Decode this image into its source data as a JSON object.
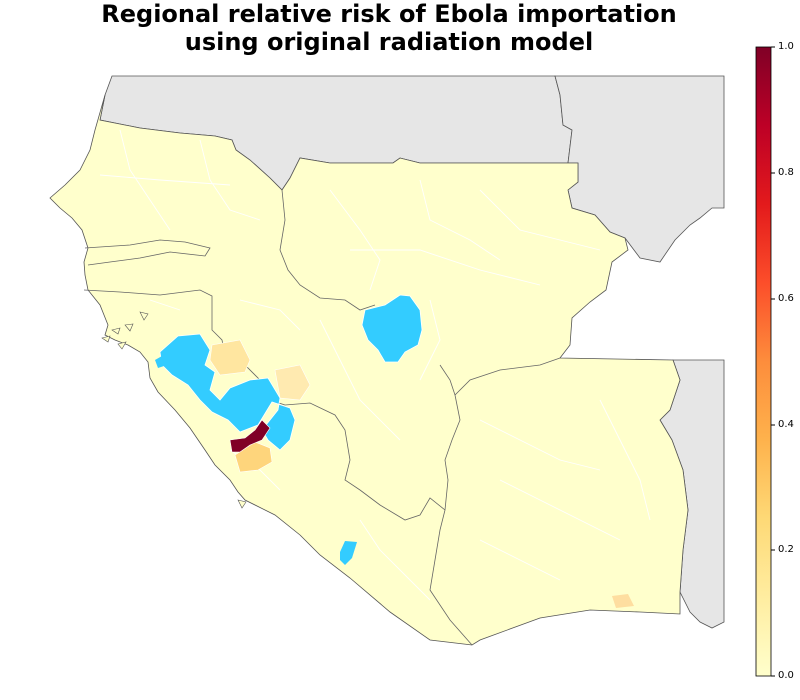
{
  "title_line1": "Regional relative risk of Ebola importation",
  "title_line2": "using original radiation model",
  "colorbar": {
    "ticks": [
      "1.0",
      "0.8",
      "0.6",
      "0.4",
      "0.2",
      "0.0"
    ],
    "min": 0.0,
    "max": 1.0,
    "colormap": "YlOrRd",
    "stops": [
      "#ffffcc",
      "#ffeda0",
      "#fed976",
      "#feb24c",
      "#fd8d3c",
      "#fc4e2a",
      "#e31a1c",
      "#bd0026",
      "#800026"
    ]
  },
  "colors": {
    "background_land": "#e6e6e6",
    "low_risk": "#ffffcc",
    "medium_risk": "#fed57c",
    "high_risk": "#800026",
    "affected_regions": "#33ccff"
  }
}
